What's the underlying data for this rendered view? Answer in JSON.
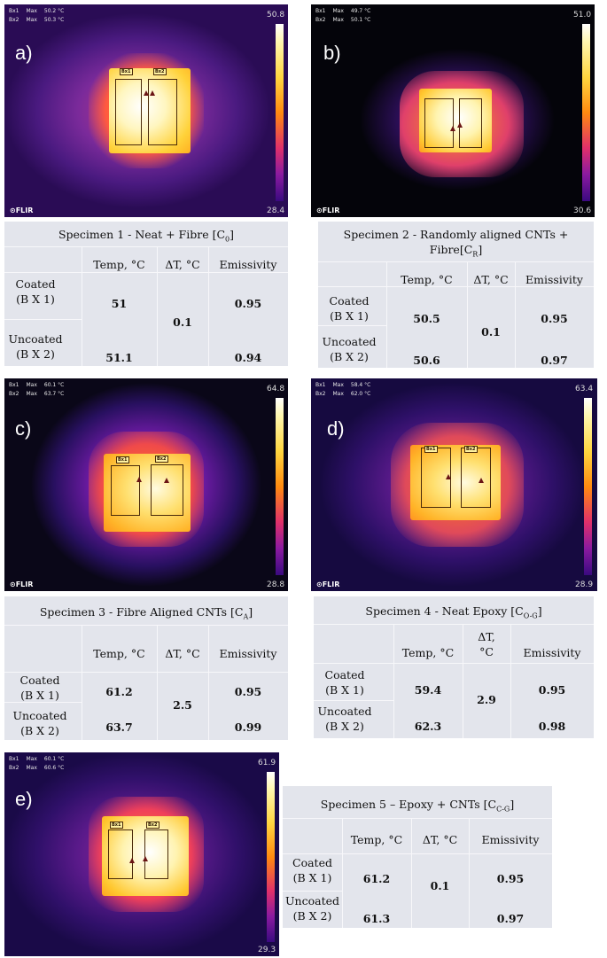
{
  "panels": [
    {
      "letter": "a)",
      "bx1": "Bx1",
      "bx1_stat": "Max",
      "bx1_val": "50.2 °C",
      "bx2": "Bx2",
      "bx2_stat": "Max",
      "bx2_val": "50.3 °C",
      "scale_max": "50.8",
      "scale_min": "28.4",
      "box1_label": "Bx1",
      "box2_label": "Bx2",
      "logo": "FLIR"
    },
    {
      "letter": "b)",
      "bx1": "Bx1",
      "bx1_stat": "Max",
      "bx1_val": "49.7 °C",
      "bx2": "Bx2",
      "bx2_stat": "Max",
      "bx2_val": "50.1 °C",
      "scale_max": "51.0",
      "scale_min": "30.6",
      "box1_label": "Bx1",
      "box2_label": "Bx2",
      "logo": "FLIR"
    },
    {
      "letter": "c)",
      "bx1": "Bx1",
      "bx1_stat": "Max",
      "bx1_val": "60.1 °C",
      "bx2": "Bx2",
      "bx2_stat": "Max",
      "bx2_val": "63.7 °C",
      "scale_max": "64.8",
      "scale_min": "28.8",
      "box1_label": "Bx1",
      "box2_label": "Bx2",
      "logo": "FLIR"
    },
    {
      "letter": "d)",
      "bx1": "Bx1",
      "bx1_stat": "Max",
      "bx1_val": "58.4 °C",
      "bx2": "Bx2",
      "bx2_stat": "Max",
      "bx2_val": "62.0 °C",
      "scale_max": "63.4",
      "scale_min": "28.9",
      "box1_label": "Bx1",
      "box2_label": "Bx2",
      "logo": "FLIR"
    },
    {
      "letter": "e)",
      "bx1": "Bx1",
      "bx1_stat": "Max",
      "bx1_val": "60.1 °C",
      "bx2": "Bx2",
      "bx2_stat": "Max",
      "bx2_val": "60.6 °C",
      "scale_max": "61.9",
      "scale_min": "29.3",
      "box1_label": "Bx1",
      "box2_label": "Bx2",
      "logo": "FLIR"
    }
  ],
  "tables": [
    {
      "title": "Specimen 1 - Neat + Fibre [C",
      "title_sub": "0",
      "title_end": "]",
      "h_temp": "Temp, °C",
      "h_delta": "ΔT, °C",
      "h_emis": "Emissivity",
      "row1_a": "Coated",
      "row1_b": "(B X 1)",
      "row2_a": "Uncoated",
      "row2_b": "(B X 2)",
      "t1": "51",
      "t2": "51.1",
      "delta": "0.1",
      "e1": "0.95",
      "e2": "0.94"
    },
    {
      "title": "Specimen 2 - Randomly aligned CNTs +",
      "title2": "Fibre[C",
      "title_sub": "R",
      "title_end": "]",
      "h_temp": "Temp, °C",
      "h_delta": "ΔT, °C",
      "h_emis": "Emissivity",
      "row1_a": "Coated",
      "row1_b": "(B X 1)",
      "row2_a": "Uncoated",
      "row2_b": "(B X 2)",
      "t1": "50.5",
      "t2": "50.6",
      "delta": "0.1",
      "e1": "0.95",
      "e2": "0.97"
    },
    {
      "title": "Specimen 3 - Fibre Aligned CNTs [C",
      "title_sub": "A",
      "title_end": "]",
      "h_temp": "Temp, °C",
      "h_delta": "ΔT, °C",
      "h_emis": "Emissivity",
      "row1_a": "Coated",
      "row1_b": "(B X 1)",
      "row2_a": "Uncoated",
      "row2_b": "(B X 2)",
      "t1": "61.2",
      "t2": "63.7",
      "delta": "2.5",
      "e1": "0.95",
      "e2": "0.99"
    },
    {
      "title": "Specimen 4 - Neat Epoxy [C",
      "title_sub": "O-G",
      "title_end": "]",
      "h_temp": "Temp, °C",
      "h_delta_a": "ΔT,",
      "h_delta_b": "°C",
      "h_emis": "Emissivity",
      "row1_a": "Coated",
      "row1_b": "(B X 1)",
      "row2_a": "Uncoated",
      "row2_b": "(B X 2)",
      "t1": "59.4",
      "t2": "62.3",
      "delta": "2.9",
      "e1": "0.95",
      "e2": "0.98"
    },
    {
      "title": "Specimen 5 – Epoxy + CNTs [C",
      "title_sub": "C-G",
      "title_end": "]",
      "h_temp": "Temp, °C",
      "h_delta": "ΔT, °C",
      "h_emis": "Emissivity",
      "row1_a": "Coated",
      "row1_b": "(B X 1)",
      "row2_a": "Uncoated",
      "row2_b": "(B X 2)",
      "t1": "61.2",
      "t2": "61.3",
      "delta": "0.1",
      "e1": "0.95",
      "e2": "0.97"
    }
  ]
}
